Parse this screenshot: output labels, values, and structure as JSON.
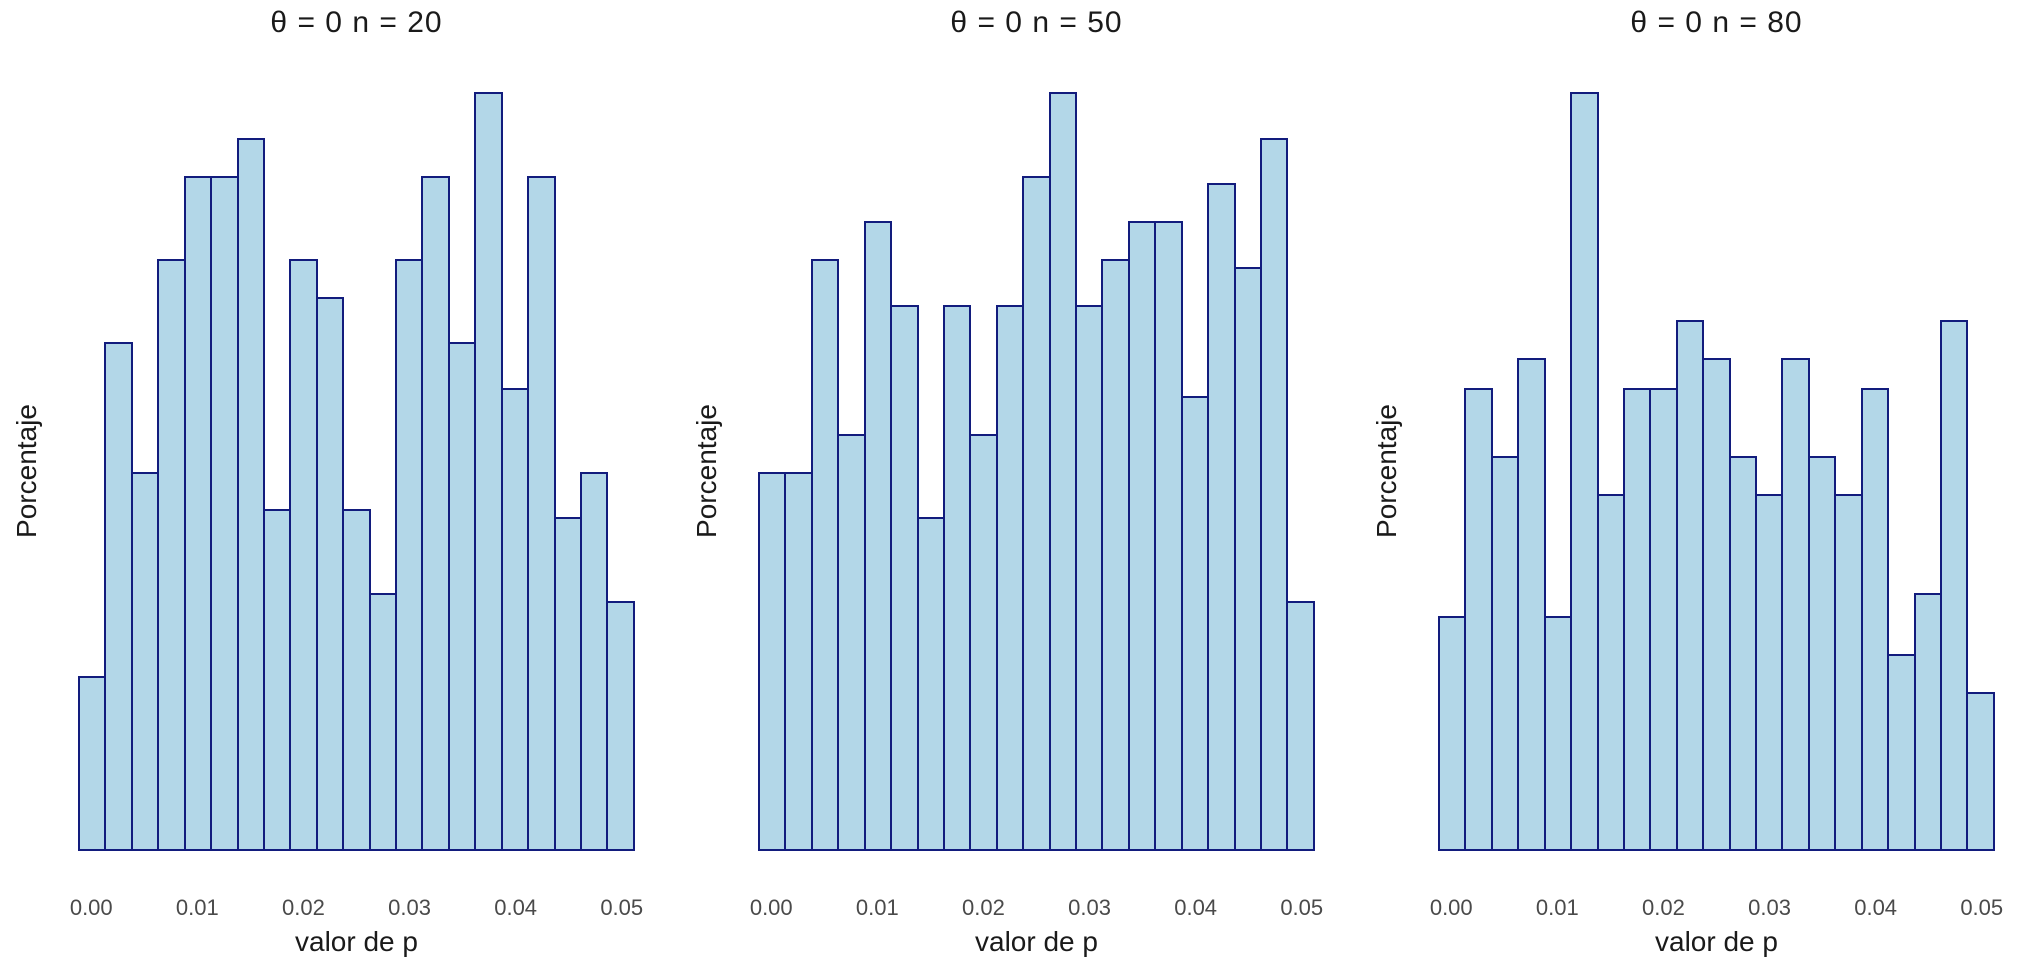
{
  "style": {
    "background": "#ffffff",
    "bar_fill": "#b3d7e8",
    "bar_border": "#121c7d",
    "title_color": "#1a1a1a",
    "axis_label_color": "#1a1a1a",
    "tick_label_color": "#4a4a4a"
  },
  "chart_data": [
    {
      "type": "bar",
      "subtype": "histogram",
      "title": "θ = 0 n = 20",
      "xlabel": "valor de p",
      "ylabel": "Porcentaje",
      "x_tick_labels": [
        "0.00",
        "0.01",
        "0.02",
        "0.03",
        "0.04",
        "0.05"
      ],
      "bin_width": 0.0025,
      "bin_centers": [
        0.0,
        0.0025,
        0.005,
        0.0075,
        0.01,
        0.0125,
        0.015,
        0.0175,
        0.02,
        0.0225,
        0.025,
        0.0275,
        0.03,
        0.0325,
        0.035,
        0.0375,
        0.04,
        0.0425,
        0.045,
        0.0475,
        0.05
      ],
      "bar_heights_pct": [
        23,
        67,
        50,
        78,
        89,
        89,
        94,
        45,
        78,
        73,
        45,
        34,
        78,
        89,
        67,
        100,
        61,
        89,
        44,
        50,
        33
      ],
      "height_units": "percent_of_plot_height",
      "y_tick_labels": [],
      "grid": false,
      "legend": false
    },
    {
      "type": "bar",
      "subtype": "histogram",
      "title": "θ = 0 n = 50",
      "xlabel": "valor de p",
      "ylabel": "Porcentaje",
      "x_tick_labels": [
        "0.00",
        "0.01",
        "0.02",
        "0.03",
        "0.04",
        "0.05"
      ],
      "bin_width": 0.0025,
      "bin_centers": [
        0.0,
        0.0025,
        0.005,
        0.0075,
        0.01,
        0.0125,
        0.015,
        0.0175,
        0.02,
        0.0225,
        0.025,
        0.0275,
        0.03,
        0.0325,
        0.035,
        0.0375,
        0.04,
        0.0425,
        0.045,
        0.0475,
        0.05
      ],
      "bar_heights_pct": [
        50,
        50,
        78,
        55,
        83,
        72,
        44,
        72,
        55,
        72,
        89,
        100,
        72,
        78,
        83,
        83,
        60,
        88,
        77,
        94,
        33
      ],
      "height_units": "percent_of_plot_height",
      "y_tick_labels": [],
      "grid": false,
      "legend": false
    },
    {
      "type": "bar",
      "subtype": "histogram",
      "title": "θ = 0 n = 80",
      "xlabel": "valor de p",
      "ylabel": "Porcentaje",
      "x_tick_labels": [
        "0.00",
        "0.01",
        "0.02",
        "0.03",
        "0.04",
        "0.05"
      ],
      "bin_width": 0.0025,
      "bin_centers": [
        0.0,
        0.0025,
        0.005,
        0.0075,
        0.01,
        0.0125,
        0.015,
        0.0175,
        0.02,
        0.0225,
        0.025,
        0.0275,
        0.03,
        0.0325,
        0.035,
        0.0375,
        0.04,
        0.0425,
        0.045,
        0.0475,
        0.05
      ],
      "bar_heights_pct": [
        31,
        61,
        52,
        65,
        31,
        100,
        47,
        61,
        61,
        70,
        65,
        52,
        47,
        65,
        52,
        47,
        61,
        26,
        34,
        70,
        21
      ],
      "height_units": "percent_of_plot_height",
      "y_tick_labels": [],
      "grid": false,
      "legend": false
    }
  ]
}
